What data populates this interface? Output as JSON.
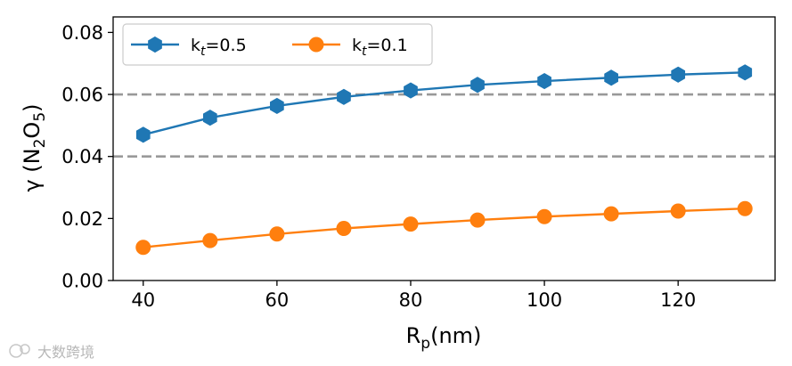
{
  "chart_data": {
    "type": "line",
    "x": [
      40,
      50,
      60,
      70,
      80,
      90,
      100,
      110,
      120,
      130
    ],
    "series": [
      {
        "name": "k_t=0.5",
        "name_main": "k",
        "name_sub": "t",
        "name_rest": "=0.5",
        "color": "#1f77b4",
        "marker": "hexagon",
        "values": [
          0.047,
          0.0525,
          0.0563,
          0.0592,
          0.0613,
          0.0631,
          0.0643,
          0.0654,
          0.0664,
          0.0671
        ]
      },
      {
        "name": "k_t=0.1",
        "name_main": "k",
        "name_sub": "t",
        "name_rest": "=0.1",
        "color": "#ff7f0e",
        "marker": "circle",
        "values": [
          0.0107,
          0.0129,
          0.015,
          0.0168,
          0.0182,
          0.0195,
          0.0206,
          0.0215,
          0.0224,
          0.0232
        ]
      }
    ],
    "reference_lines": [
      {
        "y": 0.06,
        "color": "#999999",
        "style": "dashed"
      },
      {
        "y": 0.04,
        "color": "#999999",
        "style": "dashed"
      }
    ],
    "xlabel_main": "R",
    "xlabel_sub": "p",
    "xlabel_rest": "(nm)",
    "ylabel_main": "γ (N",
    "ylabel_sub1": "2",
    "ylabel_mid": "O",
    "ylabel_sub2": "5",
    "ylabel_rest": ")",
    "xlim": [
      35.5,
      134.5
    ],
    "ylim": [
      0,
      0.085
    ],
    "xticks": [
      40,
      60,
      80,
      100,
      120
    ],
    "xtick_labels": [
      "40",
      "60",
      "80",
      "100",
      "120"
    ],
    "yticks": [
      0,
      0.02,
      0.04,
      0.06,
      0.08
    ],
    "ytick_labels": [
      "0.00",
      "0.02",
      "0.04",
      "0.06",
      "0.08"
    ],
    "grid": false,
    "legend_position": "top-left",
    "legend_columns": 2
  },
  "watermark": {
    "text": "大数跨境"
  }
}
